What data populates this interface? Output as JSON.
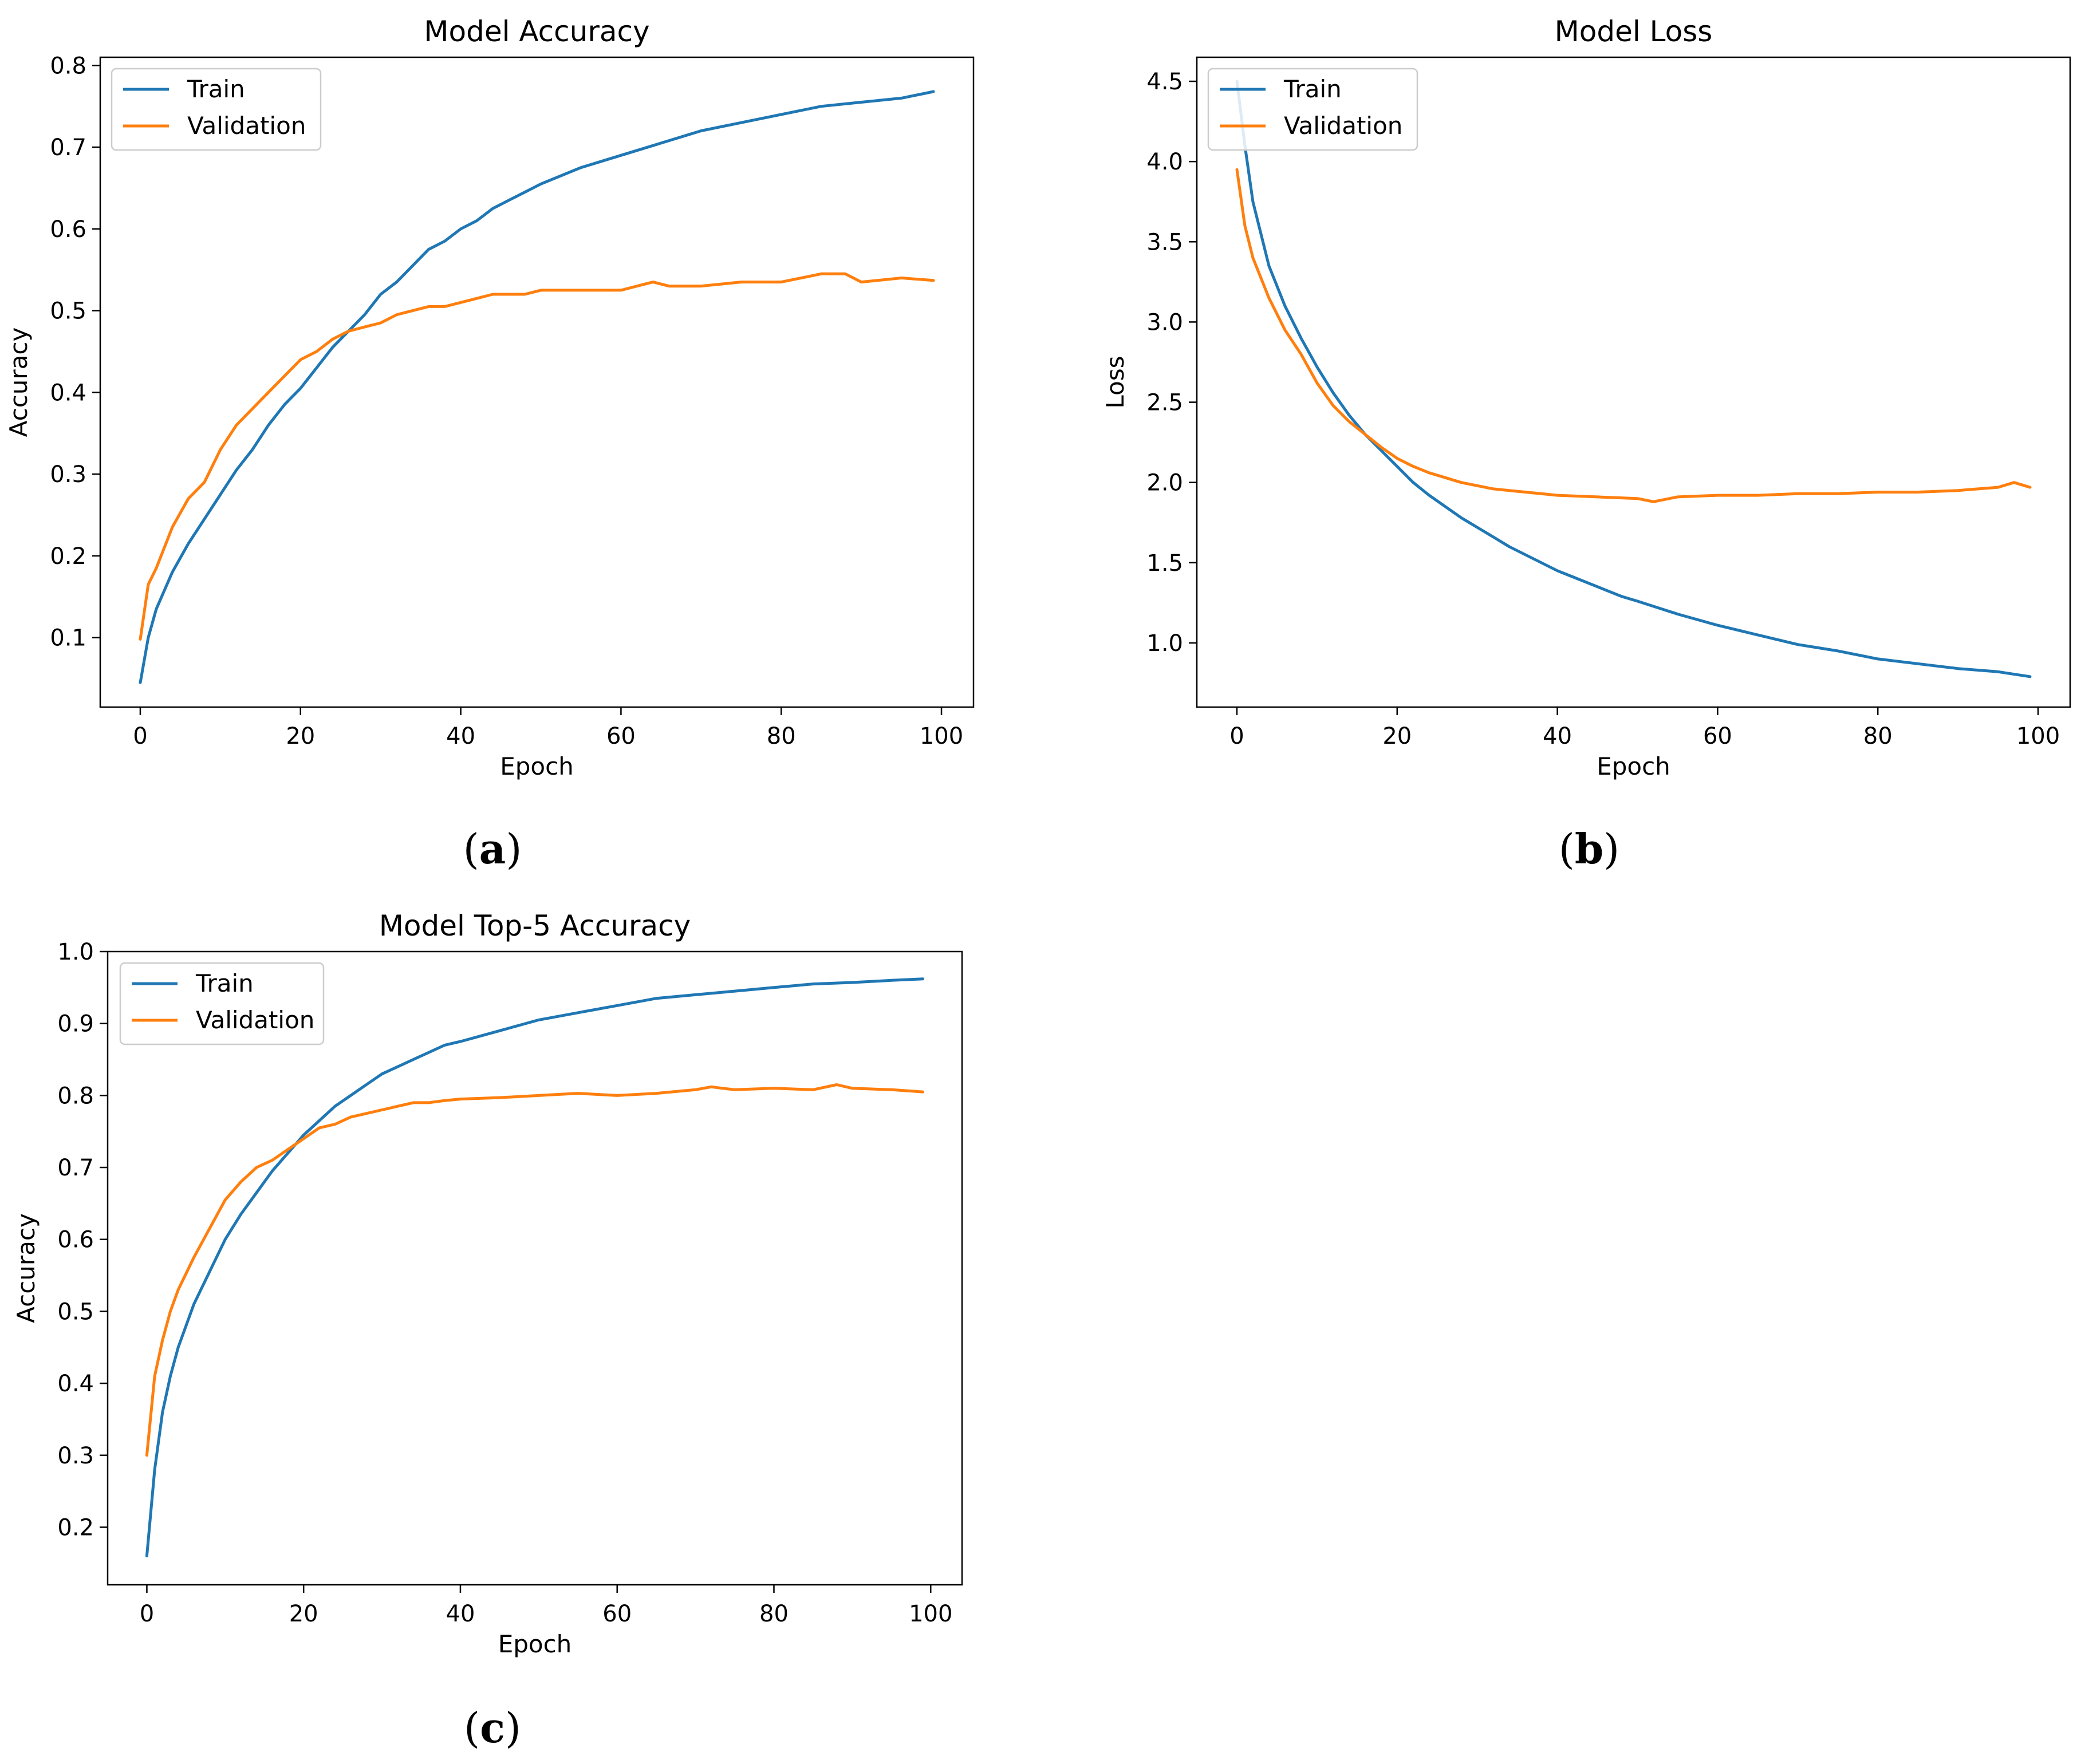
{
  "figure": {
    "panel_labels": [
      "a",
      "b",
      "c"
    ]
  },
  "colors": {
    "train": "#1f77b4",
    "validation": "#ff7f0e",
    "axis": "#000000",
    "legend_border": "#cccccc"
  },
  "chart_data": [
    {
      "id": "a",
      "type": "line",
      "title": "Model Accuracy",
      "xlabel": "Epoch",
      "ylabel": "Accuracy",
      "xlim": [
        -5,
        104
      ],
      "ylim": [
        0.015,
        0.81
      ],
      "xticks": [
        0,
        20,
        40,
        60,
        80,
        100
      ],
      "xtick_labels": [
        "0",
        "20",
        "40",
        "60",
        "80",
        "100"
      ],
      "yticks": [
        0.1,
        0.2,
        0.3,
        0.4,
        0.5,
        0.6,
        0.7,
        0.8
      ],
      "ytick_labels": [
        "0.1",
        "0.2",
        "0.3",
        "0.4",
        "0.5",
        "0.6",
        "0.7",
        "0.8"
      ],
      "legend": {
        "position": "top-left",
        "entries": [
          "Train",
          "Validation"
        ]
      },
      "series": [
        {
          "name": "Train",
          "points": [
            [
              0,
              0.045
            ],
            [
              1,
              0.1
            ],
            [
              2,
              0.135
            ],
            [
              4,
              0.18
            ],
            [
              6,
              0.215
            ],
            [
              8,
              0.245
            ],
            [
              10,
              0.275
            ],
            [
              12,
              0.305
            ],
            [
              14,
              0.33
            ],
            [
              16,
              0.36
            ],
            [
              18,
              0.385
            ],
            [
              20,
              0.405
            ],
            [
              22,
              0.43
            ],
            [
              24,
              0.455
            ],
            [
              26,
              0.475
            ],
            [
              28,
              0.495
            ],
            [
              30,
              0.52
            ],
            [
              32,
              0.535
            ],
            [
              34,
              0.555
            ],
            [
              36,
              0.575
            ],
            [
              38,
              0.585
            ],
            [
              40,
              0.6
            ],
            [
              42,
              0.61
            ],
            [
              44,
              0.625
            ],
            [
              46,
              0.635
            ],
            [
              48,
              0.645
            ],
            [
              50,
              0.655
            ],
            [
              55,
              0.675
            ],
            [
              60,
              0.69
            ],
            [
              65,
              0.705
            ],
            [
              70,
              0.72
            ],
            [
              75,
              0.73
            ],
            [
              80,
              0.74
            ],
            [
              85,
              0.75
            ],
            [
              90,
              0.755
            ],
            [
              95,
              0.76
            ],
            [
              99,
              0.768
            ]
          ]
        },
        {
          "name": "Validation",
          "points": [
            [
              0,
              0.098
            ],
            [
              1,
              0.165
            ],
            [
              2,
              0.185
            ],
            [
              4,
              0.235
            ],
            [
              6,
              0.27
            ],
            [
              8,
              0.29
            ],
            [
              10,
              0.33
            ],
            [
              12,
              0.36
            ],
            [
              14,
              0.38
            ],
            [
              16,
              0.4
            ],
            [
              18,
              0.42
            ],
            [
              20,
              0.44
            ],
            [
              22,
              0.45
            ],
            [
              24,
              0.465
            ],
            [
              26,
              0.475
            ],
            [
              28,
              0.48
            ],
            [
              30,
              0.485
            ],
            [
              32,
              0.495
            ],
            [
              34,
              0.5
            ],
            [
              36,
              0.505
            ],
            [
              38,
              0.505
            ],
            [
              40,
              0.51
            ],
            [
              42,
              0.515
            ],
            [
              44,
              0.52
            ],
            [
              46,
              0.52
            ],
            [
              48,
              0.52
            ],
            [
              50,
              0.525
            ],
            [
              55,
              0.525
            ],
            [
              60,
              0.525
            ],
            [
              62,
              0.53
            ],
            [
              64,
              0.535
            ],
            [
              66,
              0.53
            ],
            [
              70,
              0.53
            ],
            [
              75,
              0.535
            ],
            [
              80,
              0.535
            ],
            [
              85,
              0.545
            ],
            [
              88,
              0.545
            ],
            [
              90,
              0.535
            ],
            [
              95,
              0.54
            ],
            [
              99,
              0.537
            ]
          ]
        }
      ]
    },
    {
      "id": "b",
      "type": "line",
      "title": "Model Loss",
      "xlabel": "Epoch",
      "ylabel": "Loss",
      "xlim": [
        -5,
        104
      ],
      "ylim": [
        0.6,
        4.65
      ],
      "xticks": [
        0,
        20,
        40,
        60,
        80,
        100
      ],
      "xtick_labels": [
        "0",
        "20",
        "40",
        "60",
        "80",
        "100"
      ],
      "yticks": [
        1.0,
        1.5,
        2.0,
        2.5,
        3.0,
        3.5,
        4.0,
        4.5
      ],
      "ytick_labels": [
        "1.0",
        "1.5",
        "2.0",
        "2.5",
        "3.0",
        "3.5",
        "4.0",
        "4.5"
      ],
      "legend": {
        "position": "top-left",
        "entries": [
          "Train",
          "Validation"
        ]
      },
      "series": [
        {
          "name": "Train",
          "points": [
            [
              0,
              4.5
            ],
            [
              1,
              4.1
            ],
            [
              2,
              3.75
            ],
            [
              4,
              3.35
            ],
            [
              6,
              3.1
            ],
            [
              8,
              2.9
            ],
            [
              10,
              2.72
            ],
            [
              12,
              2.56
            ],
            [
              14,
              2.42
            ],
            [
              16,
              2.3
            ],
            [
              18,
              2.2
            ],
            [
              20,
              2.1
            ],
            [
              22,
              2.0
            ],
            [
              24,
              1.92
            ],
            [
              26,
              1.85
            ],
            [
              28,
              1.78
            ],
            [
              30,
              1.72
            ],
            [
              32,
              1.66
            ],
            [
              34,
              1.6
            ],
            [
              36,
              1.55
            ],
            [
              38,
              1.5
            ],
            [
              40,
              1.45
            ],
            [
              42,
              1.41
            ],
            [
              44,
              1.37
            ],
            [
              46,
              1.33
            ],
            [
              48,
              1.29
            ],
            [
              50,
              1.26
            ],
            [
              55,
              1.18
            ],
            [
              60,
              1.11
            ],
            [
              65,
              1.05
            ],
            [
              70,
              0.99
            ],
            [
              75,
              0.95
            ],
            [
              80,
              0.9
            ],
            [
              85,
              0.87
            ],
            [
              90,
              0.84
            ],
            [
              95,
              0.82
            ],
            [
              99,
              0.79
            ]
          ]
        },
        {
          "name": "Validation",
          "points": [
            [
              0,
              3.95
            ],
            [
              1,
              3.6
            ],
            [
              2,
              3.4
            ],
            [
              4,
              3.15
            ],
            [
              6,
              2.95
            ],
            [
              8,
              2.8
            ],
            [
              10,
              2.62
            ],
            [
              12,
              2.48
            ],
            [
              14,
              2.38
            ],
            [
              16,
              2.3
            ],
            [
              18,
              2.22
            ],
            [
              20,
              2.15
            ],
            [
              22,
              2.1
            ],
            [
              24,
              2.06
            ],
            [
              26,
              2.03
            ],
            [
              28,
              2.0
            ],
            [
              30,
              1.98
            ],
            [
              32,
              1.96
            ],
            [
              34,
              1.95
            ],
            [
              36,
              1.94
            ],
            [
              38,
              1.93
            ],
            [
              40,
              1.92
            ],
            [
              45,
              1.91
            ],
            [
              50,
              1.9
            ],
            [
              52,
              1.88
            ],
            [
              55,
              1.91
            ],
            [
              60,
              1.92
            ],
            [
              65,
              1.92
            ],
            [
              70,
              1.93
            ],
            [
              75,
              1.93
            ],
            [
              80,
              1.94
            ],
            [
              85,
              1.94
            ],
            [
              90,
              1.95
            ],
            [
              95,
              1.97
            ],
            [
              97,
              2.0
            ],
            [
              99,
              1.97
            ]
          ]
        }
      ]
    },
    {
      "id": "c",
      "type": "line",
      "title": "Model Top-5 Accuracy",
      "xlabel": "Epoch",
      "ylabel": "Accuracy",
      "xlim": [
        -5,
        104
      ],
      "ylim": [
        0.12,
        1.0
      ],
      "xticks": [
        0,
        20,
        40,
        60,
        80,
        100
      ],
      "xtick_labels": [
        "0",
        "20",
        "40",
        "60",
        "80",
        "100"
      ],
      "yticks": [
        0.2,
        0.3,
        0.4,
        0.5,
        0.6,
        0.7,
        0.8,
        0.9,
        1.0
      ],
      "ytick_labels": [
        "0.2",
        "0.3",
        "0.4",
        "0.5",
        "0.6",
        "0.7",
        "0.8",
        "0.9",
        "1.0"
      ],
      "legend": {
        "position": "top-left",
        "entries": [
          "Train",
          "Validation"
        ]
      },
      "series": [
        {
          "name": "Train",
          "points": [
            [
              0,
              0.16
            ],
            [
              1,
              0.28
            ],
            [
              2,
              0.36
            ],
            [
              3,
              0.41
            ],
            [
              4,
              0.45
            ],
            [
              6,
              0.51
            ],
            [
              8,
              0.555
            ],
            [
              10,
              0.6
            ],
            [
              12,
              0.635
            ],
            [
              14,
              0.665
            ],
            [
              16,
              0.695
            ],
            [
              18,
              0.72
            ],
            [
              20,
              0.745
            ],
            [
              22,
              0.765
            ],
            [
              24,
              0.785
            ],
            [
              26,
              0.8
            ],
            [
              28,
              0.815
            ],
            [
              30,
              0.83
            ],
            [
              32,
              0.84
            ],
            [
              34,
              0.85
            ],
            [
              36,
              0.86
            ],
            [
              38,
              0.87
            ],
            [
              40,
              0.875
            ],
            [
              45,
              0.89
            ],
            [
              50,
              0.905
            ],
            [
              55,
              0.915
            ],
            [
              60,
              0.925
            ],
            [
              65,
              0.935
            ],
            [
              70,
              0.94
            ],
            [
              75,
              0.945
            ],
            [
              80,
              0.95
            ],
            [
              85,
              0.955
            ],
            [
              90,
              0.957
            ],
            [
              95,
              0.96
            ],
            [
              99,
              0.962
            ]
          ]
        },
        {
          "name": "Validation",
          "points": [
            [
              0,
              0.3
            ],
            [
              1,
              0.41
            ],
            [
              2,
              0.46
            ],
            [
              3,
              0.5
            ],
            [
              4,
              0.53
            ],
            [
              6,
              0.575
            ],
            [
              8,
              0.615
            ],
            [
              10,
              0.655
            ],
            [
              12,
              0.68
            ],
            [
              14,
              0.7
            ],
            [
              16,
              0.71
            ],
            [
              18,
              0.725
            ],
            [
              20,
              0.74
            ],
            [
              22,
              0.755
            ],
            [
              24,
              0.76
            ],
            [
              26,
              0.77
            ],
            [
              28,
              0.775
            ],
            [
              30,
              0.78
            ],
            [
              32,
              0.785
            ],
            [
              34,
              0.79
            ],
            [
              36,
              0.79
            ],
            [
              38,
              0.793
            ],
            [
              40,
              0.795
            ],
            [
              45,
              0.797
            ],
            [
              50,
              0.8
            ],
            [
              55,
              0.803
            ],
            [
              60,
              0.8
            ],
            [
              65,
              0.803
            ],
            [
              70,
              0.808
            ],
            [
              72,
              0.812
            ],
            [
              75,
              0.808
            ],
            [
              80,
              0.81
            ],
            [
              85,
              0.808
            ],
            [
              88,
              0.815
            ],
            [
              90,
              0.81
            ],
            [
              95,
              0.808
            ],
            [
              99,
              0.805
            ]
          ]
        }
      ]
    }
  ]
}
